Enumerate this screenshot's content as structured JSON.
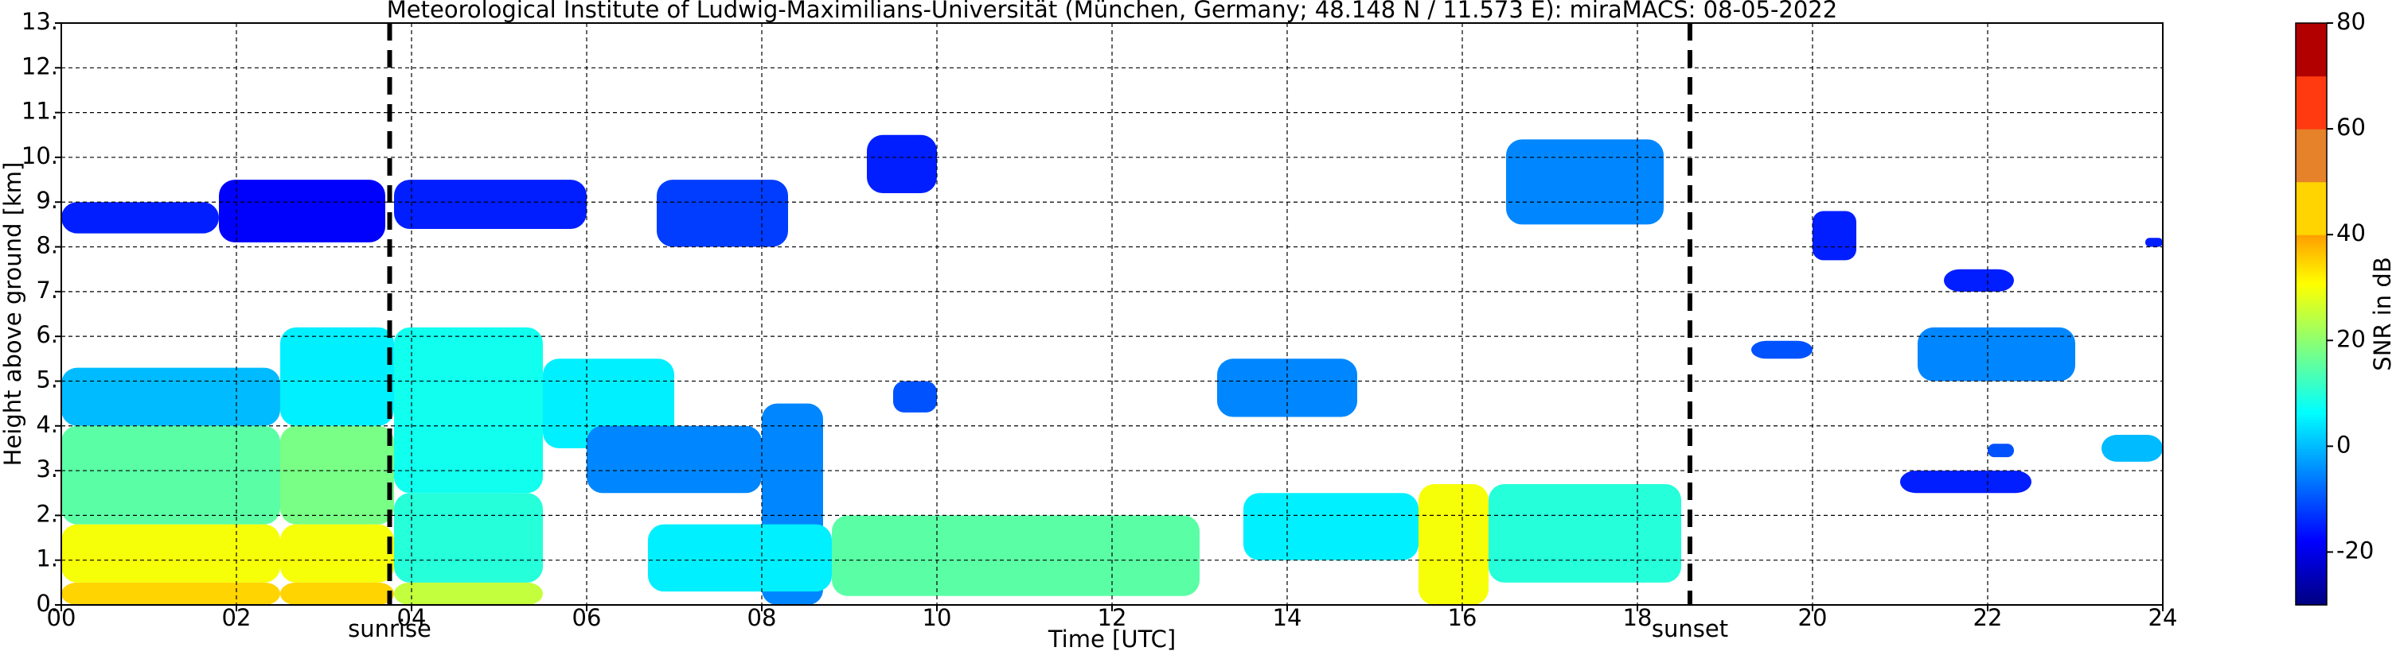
{
  "chart_data": {
    "type": "heatmap",
    "title": "Meteorological Institute of Ludwig-Maximilians-Universität (München, Germany; 48.148 N / 11.573 E):    miraMACS: 08-05-2022",
    "xlabel": "Time [UTC]",
    "ylabel": "Height above ground [km]",
    "colorbar_label": "SNR in dB",
    "colormap": "jet",
    "grid": true,
    "xlim": [
      0,
      24
    ],
    "xticks": [
      {
        "value": 0,
        "label": "00"
      },
      {
        "value": 2,
        "label": "02"
      },
      {
        "value": 4,
        "label": "04"
      },
      {
        "value": 6,
        "label": "06"
      },
      {
        "value": 8,
        "label": "08"
      },
      {
        "value": 10,
        "label": "10"
      },
      {
        "value": 12,
        "label": "12"
      },
      {
        "value": 14,
        "label": "14"
      },
      {
        "value": 16,
        "label": "16"
      },
      {
        "value": 18,
        "label": "18"
      },
      {
        "value": 20,
        "label": "20"
      },
      {
        "value": 22,
        "label": "22"
      },
      {
        "value": 24,
        "label": "24"
      }
    ],
    "ylim": [
      0,
      13
    ],
    "yticks": [
      {
        "value": 0,
        "label": "0."
      },
      {
        "value": 1,
        "label": "1."
      },
      {
        "value": 2,
        "label": "2."
      },
      {
        "value": 3,
        "label": "3."
      },
      {
        "value": 4,
        "label": "4."
      },
      {
        "value": 5,
        "label": "5."
      },
      {
        "value": 6,
        "label": "6."
      },
      {
        "value": 7,
        "label": "7."
      },
      {
        "value": 8,
        "label": "8."
      },
      {
        "value": 9,
        "label": "9."
      },
      {
        "value": 10,
        "label": "10."
      },
      {
        "value": 11,
        "label": "11."
      },
      {
        "value": 12,
        "label": "12."
      },
      {
        "value": 13,
        "label": "13."
      }
    ],
    "clim": [
      -30,
      80
    ],
    "cticks": [
      -20,
      0,
      20,
      40,
      60,
      80
    ],
    "vlines": [
      {
        "x": 3.75,
        "label": "sunrise"
      },
      {
        "x": 18.6,
        "label": "sunset"
      }
    ],
    "regions": {
      "t_start": [
        0,
        1.8,
        3.8,
        6.8,
        0,
        0,
        0,
        0,
        2.5,
        2.5,
        2.5,
        2.5,
        3.8,
        3.8,
        3.8,
        5.5,
        6,
        8,
        6.7,
        8.8,
        13.5,
        15.5,
        16.3,
        9.2,
        13.2,
        9.5,
        16.5,
        20,
        21.2,
        21.5,
        23.3,
        22,
        23.8,
        21,
        19.3
      ],
      "t_end": [
        1.8,
        3.7,
        6,
        8.3,
        2.5,
        2.5,
        2.5,
        2.5,
        3.8,
        3.8,
        3.8,
        3.8,
        5.5,
        5.5,
        5.5,
        7,
        8,
        8.7,
        8.8,
        13,
        15.5,
        16.3,
        18.5,
        10,
        14.8,
        10,
        18.3,
        20.5,
        23,
        22.3,
        24,
        22.3,
        24,
        22.5,
        20
      ],
      "h_bottom": [
        8.3,
        8.1,
        8.4,
        8,
        0,
        0.5,
        1.8,
        4,
        0,
        0.5,
        1.8,
        4,
        0,
        0.5,
        2.5,
        3.5,
        2.5,
        0,
        0.3,
        0.2,
        1,
        0,
        0.5,
        9.2,
        4.2,
        4.3,
        8.5,
        7.7,
        5,
        7,
        3.2,
        3.3,
        8,
        2.5,
        5.5
      ],
      "h_top": [
        9,
        9.5,
        9.5,
        9.5,
        0.5,
        1.8,
        4,
        5.3,
        0.5,
        1.8,
        4,
        6.2,
        0.5,
        2.5,
        6.2,
        5.5,
        4,
        4.5,
        1.8,
        2,
        2.5,
        2.7,
        2.7,
        10.5,
        5.5,
        5,
        10.4,
        8.8,
        6.2,
        7.5,
        3.8,
        3.6,
        8.2,
        3,
        5.9
      ],
      "snr": [
        -15,
        -18,
        -15,
        -12,
        45,
        30,
        15,
        0,
        45,
        30,
        18,
        5,
        25,
        10,
        8,
        5,
        -5,
        -5,
        5,
        15,
        5,
        30,
        10,
        -15,
        -5,
        -10,
        -5,
        -15,
        -5,
        -15,
        0,
        -10,
        -15,
        -15,
        -10
      ]
    }
  }
}
